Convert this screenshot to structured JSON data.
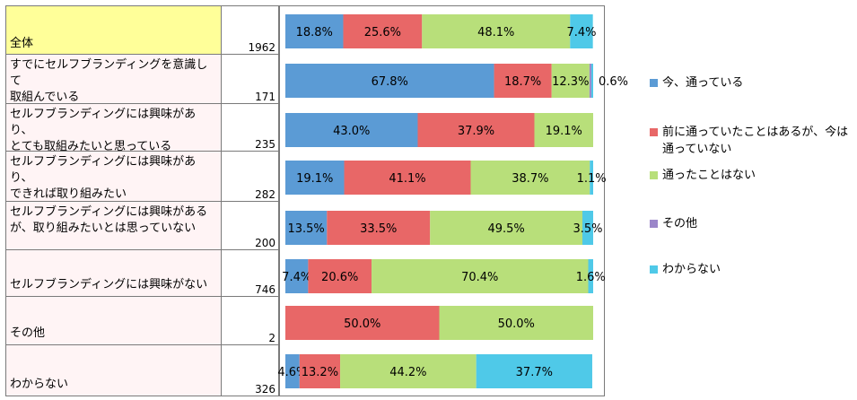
{
  "chart_data": {
    "type": "bar",
    "orientation": "horizontal",
    "stacked": "percent",
    "categories": [
      "全体",
      "すでにセルフブランディングを意識して取組んでいる",
      "セルフブランディングには興味があり、とても取組みたいと思っている",
      "セルフブランディングには興味があり、できれば取り組みたい",
      "セルフブランディングには興味があるが、取り組みたいとは思っていない",
      "セルフブランディングには興味がない",
      "その他",
      "わからない"
    ],
    "category_lines": [
      [
        "全体"
      ],
      [
        "すでにセルフブランディングを意識して",
        "取組んでいる"
      ],
      [
        "セルフブランディングには興味があり、",
        "とても取組みたいと思っている"
      ],
      [
        "セルフブランディングには興味があり、",
        "できれば取り組みたい"
      ],
      [
        "セルフブランディングには興味がある",
        "が、取り組みたいとは思っていない"
      ],
      [
        "セルフブランディングには興味がない"
      ],
      [
        "その他"
      ],
      [
        "わからない"
      ]
    ],
    "n": [
      "1962",
      "171",
      "235",
      "282",
      "200",
      "746",
      "2",
      "326"
    ],
    "series": [
      {
        "name": "今、通っている",
        "color": "#5b9bd5",
        "values": [
          18.8,
          67.8,
          43.0,
          19.1,
          13.5,
          7.4,
          0,
          4.6
        ],
        "labels": [
          "18.8%",
          "67.8%",
          "43.0%",
          "19.1%",
          "13.5%",
          "7.4%",
          "",
          "4.6%"
        ]
      },
      {
        "name": "前に通っていたことはあるが、今は通っていない",
        "color": "#e86767",
        "values": [
          25.6,
          18.7,
          37.9,
          41.1,
          33.5,
          20.6,
          50.0,
          13.2
        ],
        "labels": [
          "25.6%",
          "18.7%",
          "37.9%",
          "41.1%",
          "33.5%",
          "20.6%",
          "50.0%",
          "13.2%"
        ]
      },
      {
        "name": "通ったことはない",
        "color": "#b8df7a",
        "values": [
          48.1,
          12.3,
          19.1,
          38.7,
          49.5,
          70.4,
          50.0,
          44.2
        ],
        "labels": [
          "48.1%",
          "12.3%",
          "19.1%",
          "38.7%",
          "49.5%",
          "70.4%",
          "50.0%",
          "44.2%"
        ]
      },
      {
        "name": "その他",
        "color": "#9b86c9",
        "values": [
          0,
          0.6,
          0,
          0,
          0,
          0,
          0,
          0
        ],
        "labels": [
          "",
          "0.6%",
          "",
          "",
          "",
          "",
          "",
          ""
        ]
      },
      {
        "name": "わからない",
        "color": "#4fc9e8",
        "values": [
          7.4,
          0.6,
          0,
          1.1,
          3.5,
          1.6,
          0,
          37.7
        ],
        "labels": [
          "7.4%",
          "",
          "",
          "1.1%",
          "3.5%",
          "1.6%",
          "",
          "37.7%"
        ]
      }
    ],
    "xlim": [
      0,
      100
    ],
    "legend_position": "right",
    "grid": false,
    "title": "",
    "xlabel": "",
    "ylabel": ""
  }
}
